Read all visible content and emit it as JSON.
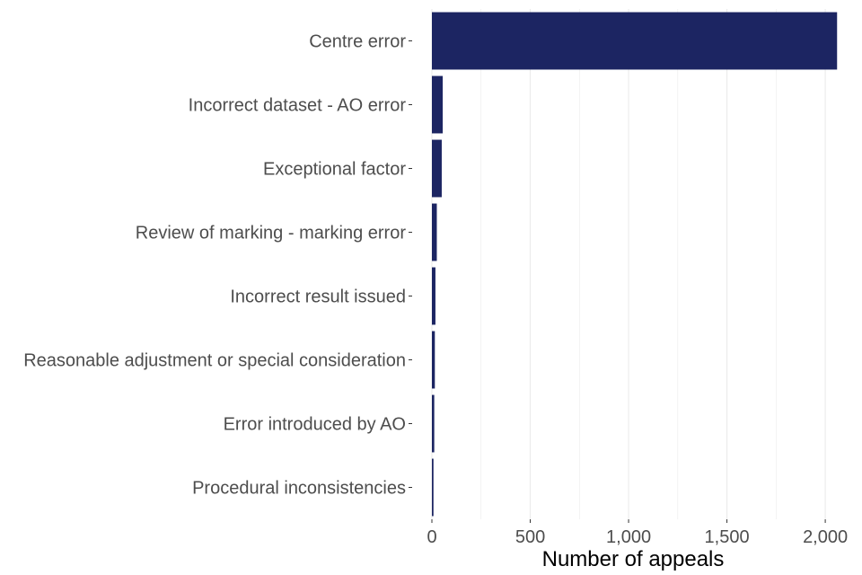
{
  "chart_data": {
    "type": "bar",
    "orientation": "horizontal",
    "categories": [
      "Centre error",
      "Incorrect dataset - AO error",
      "Exceptional factor",
      "Review of marking - marking error",
      "Incorrect result issued",
      "Reasonable adjustment or special consideration",
      "Error introduced by AO",
      "Procedural inconsistencies"
    ],
    "values": [
      2060,
      55,
      50,
      25,
      18,
      15,
      12,
      8
    ],
    "xlabel": "Number of appeals",
    "ylabel": "",
    "xlim": [
      0,
      2100
    ],
    "x_ticks": [
      0,
      500,
      1000,
      1500,
      2000
    ],
    "x_tick_labels": [
      "0",
      "500",
      "1,000",
      "1,500",
      "2,000"
    ],
    "grid": "vertical",
    "bar_color": "#1c2562",
    "grid_color": "#ebebeb"
  }
}
